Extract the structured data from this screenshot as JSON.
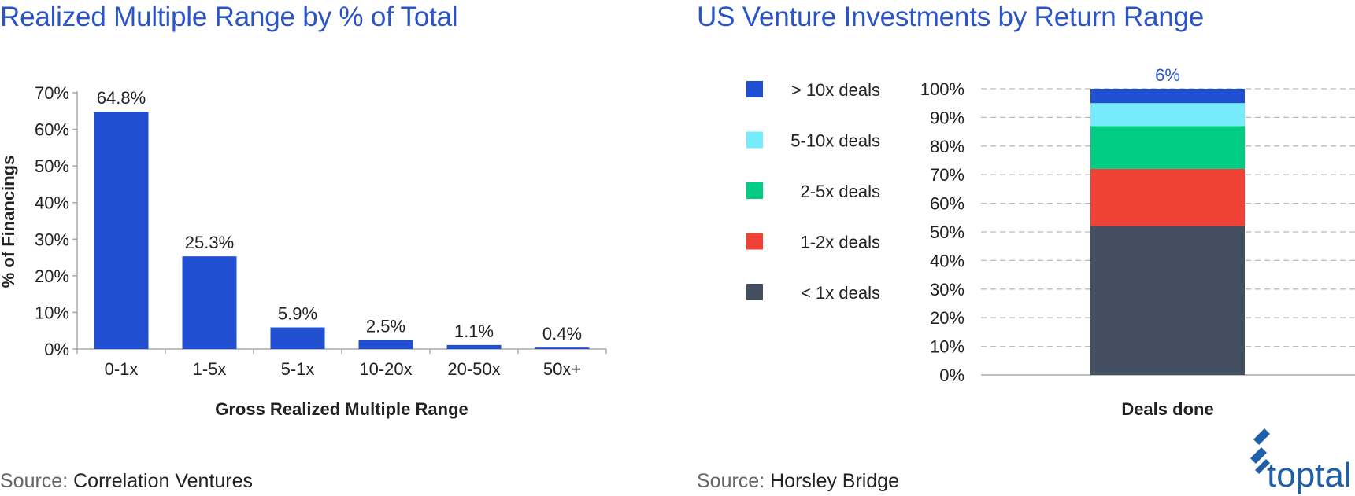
{
  "colors": {
    "title": "#2b55c7",
    "bar": "#2050d1",
    "axis": "#aaaaaa",
    "grid": "#bbbbbb",
    "logo": "#1f5fa8"
  },
  "left_source": {
    "prefix": "Source:",
    "name": "Correlation Ventures"
  },
  "right_source": {
    "prefix": "Source:",
    "name": "Horsley Bridge"
  },
  "logo": {
    "text": "toptal",
    "icon": "toptal-logo-icon"
  },
  "chart_data": [
    {
      "type": "bar",
      "title": "Realized Multiple Range by % of Total",
      "xlabel": "Gross Realized Multiple Range",
      "ylabel": "% of Financings",
      "categories": [
        "0-1x",
        "1-5x",
        "5-1x",
        "10-20x",
        "20-50x",
        "50x+"
      ],
      "values": [
        64.8,
        25.3,
        5.9,
        2.5,
        1.1,
        0.4
      ],
      "data_labels": [
        "64.8%",
        "25.3%",
        "5.9%",
        "2.5%",
        "1.1%",
        "0.4%"
      ],
      "ylim": [
        0,
        70
      ],
      "yticks": [
        "0%",
        "10%",
        "20%",
        "30%",
        "40%",
        "50%",
        "60%",
        "70%"
      ],
      "grid": false,
      "color": "#2050d1"
    },
    {
      "type": "bar",
      "stacked": true,
      "title": "US Venture Investments by Return Range",
      "xlabel": "Deals done",
      "ylabel": "",
      "categories": [
        ""
      ],
      "ylim": [
        0,
        100
      ],
      "yticks": [
        "0%",
        "10%",
        "20%",
        "30%",
        "40%",
        "50%",
        "60%",
        "70%",
        "80%",
        "90%",
        "100%"
      ],
      "grid": true,
      "legend_position": "left",
      "series": [
        {
          "name": "< 1x deals",
          "values": [
            52
          ],
          "color": "#434e61"
        },
        {
          "name": "1-2x deals",
          "values": [
            20
          ],
          "color": "#ef4135"
        },
        {
          "name": "2-5x deals",
          "values": [
            15
          ],
          "color": "#00cc83"
        },
        {
          "name": "5-10x deals",
          "values": [
            8
          ],
          "color": "#76ebfb"
        },
        {
          "name": "> 10x deals",
          "values": [
            6
          ],
          "color": "#2050d1"
        }
      ],
      "data_labels": [
        {
          "series": "> 10x deals",
          "text": "6%"
        }
      ]
    }
  ]
}
